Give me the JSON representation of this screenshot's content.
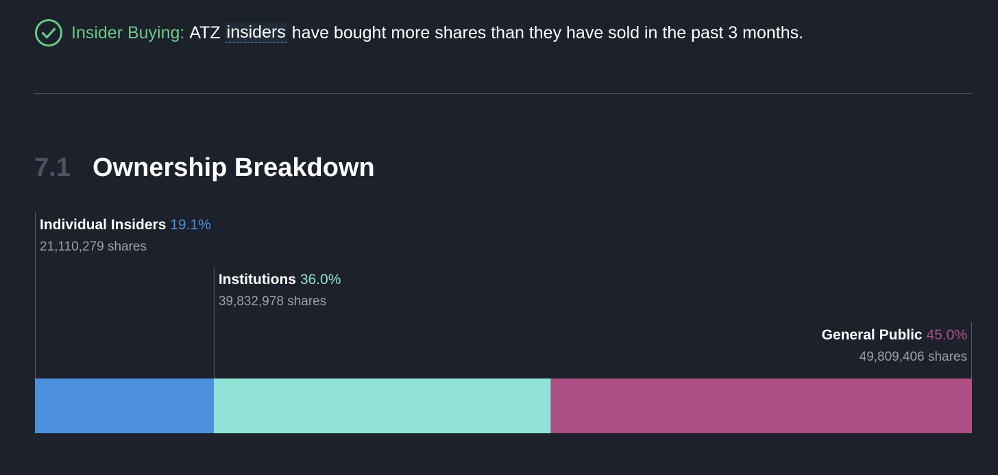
{
  "insider_note": {
    "label": "Insider Buying:",
    "text_before": "ATZ",
    "link_text": "insiders",
    "text_after": "have bought more shares than they have sold in the past 3 months.",
    "icon": "check-circle-icon",
    "label_color": "#6cc987"
  },
  "section": {
    "number": "7.1",
    "title": "Ownership Breakdown"
  },
  "chart_data": {
    "type": "bar",
    "orientation": "horizontal-stacked",
    "categories": [
      "Individual Insiders",
      "Institutions",
      "General Public"
    ],
    "values": [
      19.1,
      36.0,
      45.0
    ],
    "value_labels": [
      "19.1%",
      "36.0%",
      "45.0%"
    ],
    "shares": [
      "21,110,279 shares",
      "39,832,978 shares",
      "49,809,406 shares"
    ],
    "colors": [
      "#4a90dc",
      "#90e3d6",
      "#ac4f84"
    ],
    "label_colors": [
      "#4a90dc",
      "#90e3d6",
      "#ac4f84"
    ],
    "title": "",
    "xlabel": "",
    "ylabel": ""
  }
}
